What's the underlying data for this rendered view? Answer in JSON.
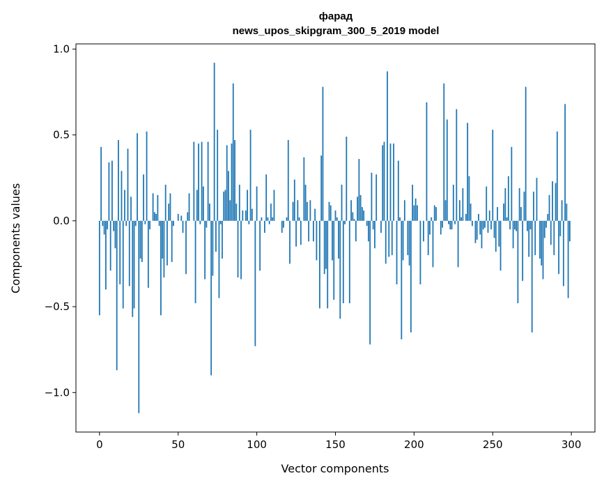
{
  "chart_data": {
    "type": "bar",
    "title": "фарад",
    "subtitle": "news_upos_skipgram_300_5_2019 model",
    "xlabel": "Vector components",
    "ylabel": "Components values",
    "xlim": [
      -15,
      315
    ],
    "ylim": [
      -1.23,
      1.03
    ],
    "xticks": [
      0,
      50,
      100,
      150,
      200,
      250,
      300
    ],
    "yticks": [
      -1.0,
      -0.5,
      0.0,
      0.5,
      1.0
    ],
    "xtick_labels": [
      "0",
      "50",
      "100",
      "150",
      "200",
      "250",
      "300"
    ],
    "ytick_labels": [
      "−1.0",
      "−0.5",
      "0.0",
      "0.5",
      "1.0"
    ],
    "bar_color": "#1f77b4",
    "grid": false,
    "values": [
      -0.55,
      0.43,
      -0.03,
      -0.08,
      -0.4,
      -0.05,
      0.34,
      -0.29,
      0.35,
      -0.06,
      -0.16,
      -0.87,
      0.47,
      -0.37,
      0.29,
      -0.51,
      0.18,
      -0.03,
      0.42,
      -0.38,
      0.14,
      -0.56,
      -0.51,
      -0.03,
      0.51,
      -1.12,
      -0.22,
      -0.24,
      0.27,
      -0.02,
      0.52,
      -0.39,
      -0.05,
      0.0,
      0.16,
      0.05,
      0.04,
      0.15,
      -0.03,
      -0.55,
      -0.22,
      -0.33,
      0.21,
      -0.26,
      0.1,
      0.16,
      -0.24,
      -0.03,
      0.0,
      0.0,
      0.04,
      0.0,
      0.03,
      -0.07,
      0.0,
      -0.31,
      0.05,
      0.16,
      0.0,
      0.0,
      0.46,
      -0.48,
      0.18,
      0.45,
      -0.02,
      0.46,
      0.2,
      -0.34,
      -0.04,
      0.46,
      0.1,
      -0.9,
      -0.32,
      0.92,
      -0.18,
      0.53,
      -0.45,
      -0.02,
      -0.22,
      0.17,
      0.18,
      0.44,
      0.29,
      0.12,
      0.45,
      0.8,
      0.47,
      0.1,
      -0.33,
      0.21,
      -0.34,
      0.06,
      0.0,
      0.06,
      0.18,
      -0.02,
      0.53,
      0.07,
      0.0,
      -0.73,
      0.2,
      0.0,
      -0.29,
      0.02,
      0.0,
      -0.07,
      0.27,
      0.02,
      -0.02,
      0.1,
      0.02,
      0.18,
      0.0,
      0.0,
      0.0,
      0.0,
      -0.07,
      -0.04,
      0.0,
      0.02,
      0.47,
      -0.25,
      0.0,
      0.11,
      0.24,
      -0.15,
      0.12,
      0.02,
      -0.14,
      0.0,
      0.37,
      0.21,
      0.11,
      -0.12,
      0.12,
      0.0,
      -0.12,
      0.07,
      -0.23,
      0.0,
      -0.51,
      0.38,
      0.78,
      -0.31,
      -0.28,
      -0.51,
      0.11,
      0.09,
      -0.23,
      -0.46,
      0.06,
      0.02,
      -0.22,
      -0.57,
      0.21,
      -0.48,
      -0.02,
      0.49,
      0.0,
      -0.48,
      0.12,
      0.05,
      0.01,
      -0.12,
      0.14,
      0.36,
      0.15,
      0.08,
      0.06,
      0.0,
      -0.03,
      -0.12,
      -0.72,
      0.28,
      -0.05,
      -0.16,
      0.27,
      0.0,
      0.0,
      -0.07,
      0.44,
      0.46,
      -0.25,
      0.87,
      -0.21,
      0.45,
      -0.2,
      0.45,
      0.0,
      -0.37,
      0.35,
      0.02,
      -0.69,
      -0.23,
      0.12,
      0.0,
      -0.2,
      -0.26,
      -0.65,
      0.21,
      0.09,
      0.13,
      0.09,
      0.0,
      -0.37,
      0.0,
      -0.12,
      0.0,
      0.69,
      -0.2,
      -0.08,
      0.02,
      -0.27,
      0.09,
      0.08,
      0.0,
      0.0,
      -0.08,
      -0.04,
      0.8,
      0.12,
      0.59,
      -0.02,
      -0.05,
      -0.05,
      0.21,
      -0.02,
      0.65,
      -0.27,
      0.12,
      0.02,
      0.19,
      0.0,
      0.04,
      0.57,
      0.26,
      0.1,
      -0.03,
      0.0,
      -0.13,
      -0.11,
      0.04,
      -0.08,
      -0.16,
      -0.05,
      -0.04,
      0.2,
      -0.07,
      0.06,
      -0.05,
      0.53,
      -0.1,
      -0.18,
      0.08,
      -0.15,
      -0.29,
      0.0,
      0.1,
      0.19,
      0.02,
      0.26,
      -0.05,
      0.43,
      -0.16,
      -0.05,
      -0.06,
      -0.48,
      0.19,
      0.08,
      -0.35,
      0.17,
      0.78,
      -0.06,
      -0.21,
      -0.05,
      -0.65,
      0.17,
      -0.2,
      0.25,
      0.0,
      -0.22,
      -0.26,
      -0.34,
      -0.1,
      -0.04,
      0.04,
      0.15,
      -0.14,
      0.23,
      -0.2,
      0.22,
      0.52,
      -0.31,
      -0.09,
      0.12,
      -0.38,
      0.68,
      0.1,
      -0.45,
      -0.12
    ]
  }
}
